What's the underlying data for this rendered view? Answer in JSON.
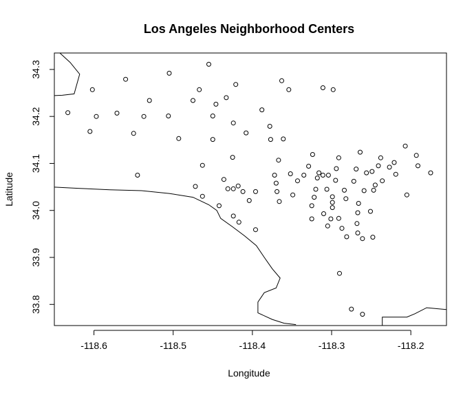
{
  "chart_data": {
    "type": "scatter",
    "title": "Los Angeles Neighborhood Centers",
    "xlabel": "Longitude",
    "ylabel": "Latitude",
    "xlim": [
      -118.65,
      -118.155
    ],
    "ylim": [
      33.755,
      34.335
    ],
    "x_ticks": [
      -118.6,
      -118.5,
      -118.4,
      -118.3,
      -118.2
    ],
    "x_tick_labels": [
      "-118.6",
      "-118.5",
      "-118.4",
      "-118.3",
      "-118.2"
    ],
    "y_ticks": [
      33.8,
      33.9,
      34.0,
      34.1,
      34.2,
      34.3
    ],
    "y_tick_labels": [
      "33.8",
      "33.9",
      "34.0",
      "34.1",
      "34.2",
      "34.3"
    ],
    "grid": false,
    "marker": "open-circle",
    "points": [
      {
        "x": -118.633,
        "y": 34.208
      },
      {
        "x": -118.602,
        "y": 34.257
      },
      {
        "x": -118.597,
        "y": 34.2
      },
      {
        "x": -118.605,
        "y": 34.168
      },
      {
        "x": -118.571,
        "y": 34.207
      },
      {
        "x": -118.56,
        "y": 34.279
      },
      {
        "x": -118.55,
        "y": 34.164
      },
      {
        "x": -118.545,
        "y": 34.075
      },
      {
        "x": -118.537,
        "y": 34.2
      },
      {
        "x": -118.53,
        "y": 34.234
      },
      {
        "x": -118.506,
        "y": 34.201
      },
      {
        "x": -118.505,
        "y": 34.292
      },
      {
        "x": -118.493,
        "y": 34.153
      },
      {
        "x": -118.475,
        "y": 34.234
      },
      {
        "x": -118.467,
        "y": 34.257
      },
      {
        "x": -118.472,
        "y": 34.051
      },
      {
        "x": -118.463,
        "y": 34.096
      },
      {
        "x": -118.463,
        "y": 34.03
      },
      {
        "x": -118.455,
        "y": 34.311
      },
      {
        "x": -118.45,
        "y": 34.201
      },
      {
        "x": -118.45,
        "y": 34.151
      },
      {
        "x": -118.446,
        "y": 34.226
      },
      {
        "x": -118.442,
        "y": 34.01
      },
      {
        "x": -118.433,
        "y": 34.24
      },
      {
        "x": -118.436,
        "y": 34.066
      },
      {
        "x": -118.431,
        "y": 34.046
      },
      {
        "x": -118.425,
        "y": 34.113
      },
      {
        "x": -118.424,
        "y": 34.186
      },
      {
        "x": -118.421,
        "y": 34.268
      },
      {
        "x": -118.424,
        "y": 34.046
      },
      {
        "x": -118.418,
        "y": 34.052
      },
      {
        "x": -118.424,
        "y": 33.988
      },
      {
        "x": -118.417,
        "y": 33.975
      },
      {
        "x": -118.412,
        "y": 34.04
      },
      {
        "x": -118.408,
        "y": 34.165
      },
      {
        "x": -118.404,
        "y": 34.021
      },
      {
        "x": -118.396,
        "y": 34.04
      },
      {
        "x": -118.396,
        "y": 33.959
      },
      {
        "x": -118.388,
        "y": 34.214
      },
      {
        "x": -118.378,
        "y": 34.179
      },
      {
        "x": -118.377,
        "y": 34.151
      },
      {
        "x": -118.372,
        "y": 34.075
      },
      {
        "x": -118.37,
        "y": 34.058
      },
      {
        "x": -118.369,
        "y": 34.04
      },
      {
        "x": -118.367,
        "y": 34.107
      },
      {
        "x": -118.366,
        "y": 34.019
      },
      {
        "x": -118.363,
        "y": 34.276
      },
      {
        "x": -118.361,
        "y": 34.152
      },
      {
        "x": -118.354,
        "y": 34.257
      },
      {
        "x": -118.352,
        "y": 34.078
      },
      {
        "x": -118.349,
        "y": 34.033
      },
      {
        "x": -118.343,
        "y": 34.063
      },
      {
        "x": -118.335,
        "y": 34.075
      },
      {
        "x": -118.329,
        "y": 34.094
      },
      {
        "x": -118.325,
        "y": 34.01
      },
      {
        "x": -118.324,
        "y": 34.119
      },
      {
        "x": -118.322,
        "y": 34.028
      },
      {
        "x": -118.32,
        "y": 34.045
      },
      {
        "x": -118.318,
        "y": 34.069
      },
      {
        "x": -118.316,
        "y": 34.08
      },
      {
        "x": -118.325,
        "y": 33.982
      },
      {
        "x": -118.311,
        "y": 34.261
      },
      {
        "x": -118.311,
        "y": 34.075
      },
      {
        "x": -118.31,
        "y": 33.993
      },
      {
        "x": -118.306,
        "y": 34.045
      },
      {
        "x": -118.305,
        "y": 33.967
      },
      {
        "x": -118.304,
        "y": 34.075
      },
      {
        "x": -118.301,
        "y": 33.982
      },
      {
        "x": -118.299,
        "y": 34.029
      },
      {
        "x": -118.299,
        "y": 34.017
      },
      {
        "x": -118.299,
        "y": 34.006
      },
      {
        "x": -118.298,
        "y": 34.257
      },
      {
        "x": -118.295,
        "y": 34.064
      },
      {
        "x": -118.294,
        "y": 34.089
      },
      {
        "x": -118.291,
        "y": 34.112
      },
      {
        "x": -118.291,
        "y": 33.983
      },
      {
        "x": -118.29,
        "y": 33.866
      },
      {
        "x": -118.287,
        "y": 33.962
      },
      {
        "x": -118.284,
        "y": 34.043
      },
      {
        "x": -118.282,
        "y": 34.025
      },
      {
        "x": -118.281,
        "y": 33.944
      },
      {
        "x": -118.275,
        "y": 33.79
      },
      {
        "x": -118.272,
        "y": 34.062
      },
      {
        "x": -118.269,
        "y": 34.088
      },
      {
        "x": -118.267,
        "y": 33.995
      },
      {
        "x": -118.268,
        "y": 33.972
      },
      {
        "x": -118.267,
        "y": 33.952
      },
      {
        "x": -118.266,
        "y": 34.015
      },
      {
        "x": -118.264,
        "y": 34.124
      },
      {
        "x": -118.261,
        "y": 33.94
      },
      {
        "x": -118.261,
        "y": 33.779
      },
      {
        "x": -118.259,
        "y": 34.042
      },
      {
        "x": -118.256,
        "y": 34.08
      },
      {
        "x": -118.251,
        "y": 33.998
      },
      {
        "x": -118.249,
        "y": 34.083
      },
      {
        "x": -118.247,
        "y": 34.043
      },
      {
        "x": -118.248,
        "y": 33.943
      },
      {
        "x": -118.245,
        "y": 34.054
      },
      {
        "x": -118.241,
        "y": 34.095
      },
      {
        "x": -118.238,
        "y": 34.112
      },
      {
        "x": -118.236,
        "y": 34.063
      },
      {
        "x": -118.227,
        "y": 34.092
      },
      {
        "x": -118.221,
        "y": 34.102
      },
      {
        "x": -118.219,
        "y": 34.077
      },
      {
        "x": -118.207,
        "y": 34.137
      },
      {
        "x": -118.205,
        "y": 34.033
      },
      {
        "x": -118.193,
        "y": 34.117
      },
      {
        "x": -118.191,
        "y": 34.095
      },
      {
        "x": -118.175,
        "y": 34.08
      }
    ],
    "coastline": [
      [
        [
          -118.645,
          34.338
        ],
        [
          -118.63,
          34.315
        ],
        [
          -118.618,
          34.29
        ],
        [
          -118.625,
          34.248
        ],
        [
          -118.64,
          34.245
        ],
        [
          -118.655,
          34.244
        ]
      ],
      [
        [
          -118.655,
          34.05
        ],
        [
          -118.62,
          34.047
        ],
        [
          -118.58,
          34.044
        ],
        [
          -118.54,
          34.042
        ],
        [
          -118.505,
          34.036
        ],
        [
          -118.475,
          34.028
        ],
        [
          -118.455,
          34.012
        ],
        [
          -118.445,
          34.0
        ],
        [
          -118.44,
          33.983
        ],
        [
          -118.425,
          33.965
        ],
        [
          -118.41,
          33.946
        ],
        [
          -118.395,
          33.925
        ],
        [
          -118.385,
          33.9
        ],
        [
          -118.375,
          33.876
        ],
        [
          -118.365,
          33.856
        ],
        [
          -118.37,
          33.835
        ],
        [
          -118.385,
          33.825
        ],
        [
          -118.393,
          33.805
        ],
        [
          -118.393,
          33.782
        ],
        [
          -118.375,
          33.768
        ],
        [
          -118.36,
          33.76
        ],
        [
          -118.345,
          33.757
        ]
      ],
      [
        [
          -118.236,
          33.755
        ],
        [
          -118.236,
          33.773
        ],
        [
          -118.205,
          33.773
        ],
        [
          -118.195,
          33.78
        ],
        [
          -118.18,
          33.793
        ],
        [
          -118.168,
          33.791
        ],
        [
          -118.155,
          33.789
        ]
      ]
    ]
  }
}
